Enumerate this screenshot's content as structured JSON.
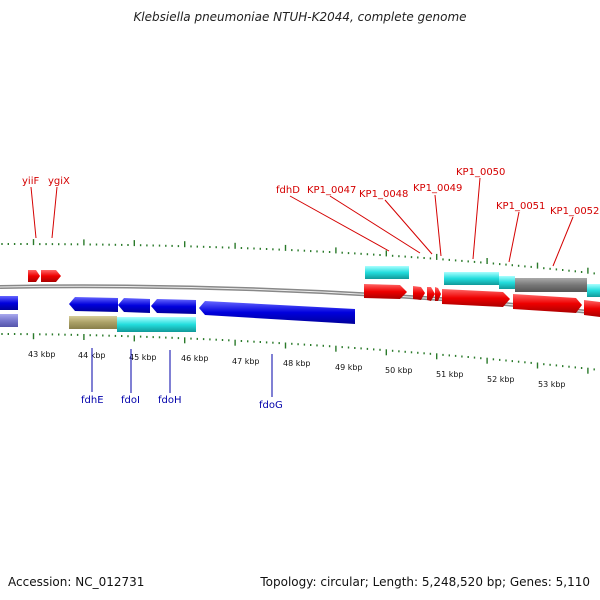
{
  "header": {
    "title": "Klebsiella pneumoniae NTUH-K2044, complete genome"
  },
  "footer": {
    "accession": "Accession: NC_012731",
    "summary": "Topology: circular; Length: 5,248,520 bp; Genes: 5,110"
  },
  "scale_labels": [
    "43 kbp",
    "44 kbp",
    "45 kbp",
    "46 kbp",
    "47 kbp",
    "48 kbp",
    "49 kbp",
    "50 kbp",
    "51 kbp",
    "52 kbp",
    "53 kbp"
  ],
  "genes_top": [
    "yiiF",
    "ygiX",
    "fdhD",
    "KP1_0047",
    "KP1_0048",
    "KP1_0049",
    "KP1_0050",
    "KP1_0051",
    "KP1_0052"
  ],
  "genes_bottom": [
    "fdhE",
    "fdoI",
    "fdoH",
    "fdoG"
  ],
  "colors": {
    "forward_cds": "#ee0000",
    "reverse_cds": "#0000dd",
    "highlight": "#22cccc",
    "gray_feature": "#777777",
    "khaki_feature": "#aaa066",
    "slate_feature": "#7777cc",
    "backbone": "#888888",
    "tick": "#2a7a2a"
  }
}
